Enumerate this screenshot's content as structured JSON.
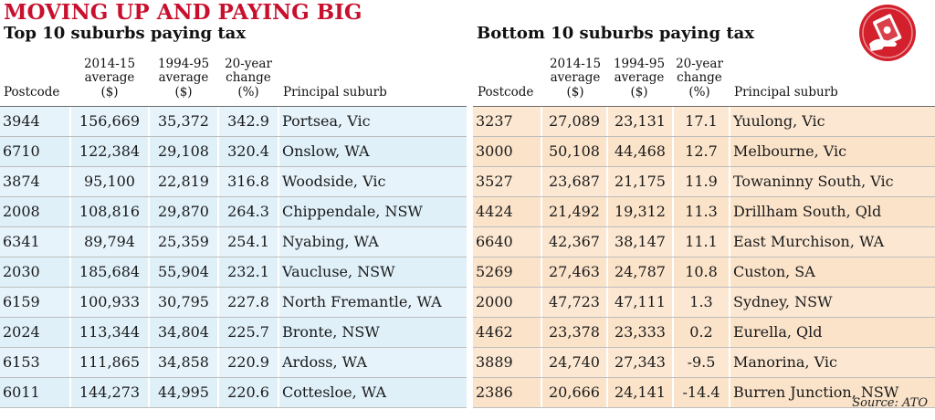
{
  "headline": "MOVING UP AND PAYING BIG",
  "left": {
    "subtitle": "Top 10 suburbs paying tax",
    "headers": {
      "postcode": "Postcode",
      "avg2014": [
        "2014-15",
        "average",
        "($)"
      ],
      "avg1994": [
        "1994-95",
        "average",
        "($)"
      ],
      "change": [
        "20-year",
        "change",
        "(%)"
      ],
      "suburb": "Principal suburb"
    },
    "rows": [
      {
        "postcode": "3944",
        "avg2014": "156,669",
        "avg1994": "35,372",
        "change": "342.9",
        "suburb": "Portsea, Vic"
      },
      {
        "postcode": "6710",
        "avg2014": "122,384",
        "avg1994": "29,108",
        "change": "320.4",
        "suburb": "Onslow, WA"
      },
      {
        "postcode": "3874",
        "avg2014": "95,100",
        "avg1994": "22,819",
        "change": "316.8",
        "suburb": "Woodside, Vic"
      },
      {
        "postcode": "2008",
        "avg2014": "108,816",
        "avg1994": "29,870",
        "change": "264.3",
        "suburb": "Chippendale, NSW"
      },
      {
        "postcode": "6341",
        "avg2014": "89,794",
        "avg1994": "25,359",
        "change": "254.1",
        "suburb": "Nyabing, WA"
      },
      {
        "postcode": "2030",
        "avg2014": "185,684",
        "avg1994": "55,904",
        "change": "232.1",
        "suburb": "Vaucluse, NSW"
      },
      {
        "postcode": "6159",
        "avg2014": "100,933",
        "avg1994": "30,795",
        "change": "227.8",
        "suburb": "North Fremantle, WA"
      },
      {
        "postcode": "2024",
        "avg2014": "113,344",
        "avg1994": "34,804",
        "change": "225.7",
        "suburb": "Bronte, NSW"
      },
      {
        "postcode": "6153",
        "avg2014": "111,865",
        "avg1994": "34,858",
        "change": "220.9",
        "suburb": "Ardoss, WA"
      },
      {
        "postcode": "6011",
        "avg2014": "144,273",
        "avg1994": "44,995",
        "change": "220.6",
        "suburb": "Cottesloe, WA"
      }
    ]
  },
  "right": {
    "subtitle": "Bottom 10 suburbs paying tax",
    "headers": {
      "postcode": "Postcode",
      "avg2014": [
        "2014-15",
        "average",
        "($)"
      ],
      "avg1994": [
        "1994-95",
        "average",
        "($)"
      ],
      "change": [
        "20-year",
        "change",
        "(%)"
      ],
      "suburb": "Principal suburb"
    },
    "rows": [
      {
        "postcode": "3237",
        "avg2014": "27,089",
        "avg1994": "23,131",
        "change": "17.1",
        "suburb": "Yuulong, Vic"
      },
      {
        "postcode": "3000",
        "avg2014": "50,108",
        "avg1994": "44,468",
        "change": "12.7",
        "suburb": "Melbourne, Vic"
      },
      {
        "postcode": "3527",
        "avg2014": "23,687",
        "avg1994": "21,175",
        "change": "11.9",
        "suburb": "Towaninny South, Vic"
      },
      {
        "postcode": "4424",
        "avg2014": "21,492",
        "avg1994": "19,312",
        "change": "11.3",
        "suburb": "Drillham South, Qld"
      },
      {
        "postcode": "6640",
        "avg2014": "42,367",
        "avg1994": "38,147",
        "change": "11.1",
        "suburb": "East Murchison, WA"
      },
      {
        "postcode": "5269",
        "avg2014": "27,463",
        "avg1994": "24,787",
        "change": "10.8",
        "suburb": "Custon, SA"
      },
      {
        "postcode": "2000",
        "avg2014": "47,723",
        "avg1994": "47,111",
        "change": "1.3",
        "suburb": "Sydney, NSW"
      },
      {
        "postcode": "4462",
        "avg2014": "23,378",
        "avg1994": "23,333",
        "change": "0.2",
        "suburb": "Eurella, Qld"
      },
      {
        "postcode": "3889",
        "avg2014": "24,740",
        "avg1994": "27,343",
        "change": "-9.5",
        "suburb": "Manorina, Vic"
      },
      {
        "postcode": "2386",
        "avg2014": "20,666",
        "avg1994": "24,141",
        "change": "-14.4",
        "suburb": "Burren Junction, NSW"
      }
    ]
  },
  "source": "Source: ATO",
  "logo": {
    "icon": "hand-holding-money-icon",
    "color": "#d3202c"
  }
}
